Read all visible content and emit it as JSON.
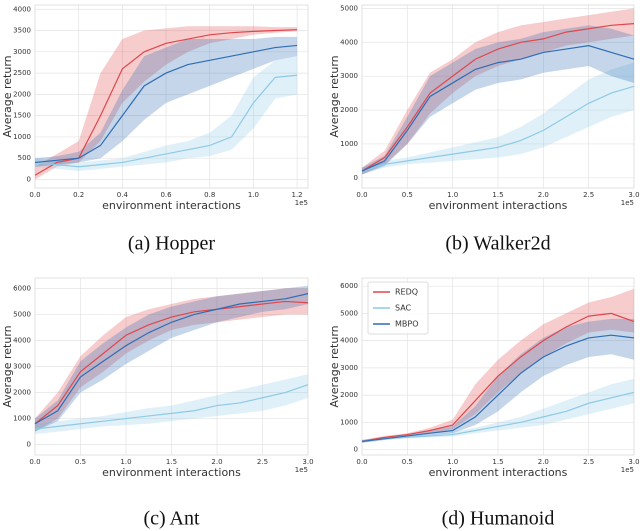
{
  "chart_data": [
    {
      "type": "line",
      "caption": "(a) Hopper",
      "ylabel": "Average return",
      "xlabel": "environment interactions",
      "x_offset_label": "1e5",
      "xlim": [
        0,
        125000
      ],
      "ylim": [
        -200,
        4100
      ],
      "xticks": [
        {
          "value": 0,
          "label": "0.0"
        },
        {
          "value": 20000,
          "label": "0.2"
        },
        {
          "value": 40000,
          "label": "0.4"
        },
        {
          "value": 60000,
          "label": "0.6"
        },
        {
          "value": 80000,
          "label": "0.8"
        },
        {
          "value": 100000,
          "label": "1.0"
        },
        {
          "value": 120000,
          "label": "1.2"
        }
      ],
      "yticks": [
        0,
        500,
        1000,
        1500,
        2000,
        2500,
        3000,
        3500,
        4000
      ],
      "grid": true,
      "x": [
        0,
        10000,
        20000,
        30000,
        40000,
        50000,
        60000,
        70000,
        80000,
        90000,
        100000,
        110000,
        120000
      ],
      "series": [
        {
          "color": "#e0474c",
          "values": [
            100,
            400,
            500,
            1500,
            2600,
            3000,
            3200,
            3300,
            3400,
            3450,
            3480,
            3500,
            3520
          ],
          "lower": [
            0,
            300,
            400,
            900,
            1800,
            2300,
            2700,
            3000,
            3200,
            3300,
            3400,
            3450,
            3480
          ],
          "upper": [
            300,
            600,
            900,
            2500,
            3300,
            3500,
            3550,
            3600,
            3600,
            3600,
            3600,
            3580,
            3580
          ]
        },
        {
          "color": "#8ecae6",
          "values": [
            400,
            350,
            300,
            350,
            400,
            500,
            600,
            700,
            800,
            1000,
            1800,
            2400,
            2450
          ],
          "lower": [
            300,
            250,
            200,
            250,
            300,
            350,
            400,
            500,
            550,
            700,
            1200,
            1900,
            2000
          ],
          "upper": [
            500,
            450,
            400,
            450,
            500,
            650,
            800,
            900,
            1100,
            1500,
            2400,
            2800,
            2900
          ]
        },
        {
          "color": "#2f6db3",
          "values": [
            400,
            450,
            500,
            800,
            1500,
            2200,
            2500,
            2700,
            2800,
            2900,
            3000,
            3100,
            3150
          ],
          "lower": [
            300,
            350,
            400,
            500,
            900,
            1400,
            1800,
            2000,
            2200,
            2400,
            2600,
            2800,
            2900
          ],
          "upper": [
            500,
            550,
            650,
            1100,
            2100,
            2900,
            3100,
            3300,
            3300,
            3300,
            3300,
            3350,
            3350
          ]
        }
      ]
    },
    {
      "type": "line",
      "caption": "(b) Walker2d",
      "ylabel": "Average return",
      "xlabel": "environment interactions",
      "x_offset_label": "1e5",
      "xlim": [
        0,
        300000
      ],
      "ylim": [
        -300,
        5100
      ],
      "xticks": [
        {
          "value": 0,
          "label": "0.0"
        },
        {
          "value": 50000,
          "label": "0.5"
        },
        {
          "value": 100000,
          "label": "1.0"
        },
        {
          "value": 150000,
          "label": "1.5"
        },
        {
          "value": 200000,
          "label": "2.0"
        },
        {
          "value": 250000,
          "label": "2.5"
        },
        {
          "value": 300000,
          "label": "3.0"
        }
      ],
      "yticks": [
        0,
        1000,
        2000,
        3000,
        4000,
        5000
      ],
      "grid": true,
      "x": [
        0,
        25000,
        50000,
        75000,
        100000,
        125000,
        150000,
        175000,
        200000,
        225000,
        250000,
        275000,
        300000
      ],
      "series": [
        {
          "color": "#e0474c",
          "values": [
            200,
            600,
            1500,
            2500,
            3000,
            3500,
            3800,
            4000,
            4100,
            4300,
            4400,
            4500,
            4550
          ],
          "lower": [
            100,
            400,
            1000,
            1900,
            2500,
            3000,
            3300,
            3500,
            3700,
            3900,
            4000,
            4100,
            4200
          ],
          "upper": [
            300,
            800,
            2000,
            3100,
            3500,
            4000,
            4300,
            4500,
            4600,
            4700,
            4800,
            4900,
            5000
          ]
        },
        {
          "color": "#8ecae6",
          "values": [
            200,
            400,
            500,
            600,
            700,
            800,
            900,
            1100,
            1400,
            1800,
            2200,
            2500,
            2700
          ],
          "lower": [
            100,
            300,
            400,
            450,
            500,
            550,
            600,
            700,
            900,
            1200,
            1500,
            1800,
            2000
          ],
          "upper": [
            300,
            500,
            600,
            750,
            900,
            1050,
            1200,
            1500,
            1900,
            2400,
            2900,
            3200,
            3400
          ]
        },
        {
          "color": "#2f6db3",
          "values": [
            200,
            500,
            1400,
            2400,
            2800,
            3200,
            3400,
            3500,
            3700,
            3800,
            3900,
            3700,
            3500
          ],
          "lower": [
            100,
            350,
            1000,
            1800,
            2200,
            2600,
            2800,
            2900,
            3100,
            3200,
            3300,
            3000,
            2800
          ],
          "upper": [
            300,
            650,
            1800,
            3000,
            3400,
            3800,
            4000,
            4100,
            4300,
            4400,
            4500,
            4400,
            4200
          ]
        }
      ]
    },
    {
      "type": "line",
      "caption": "(c) Ant",
      "ylabel": "Average return",
      "xlabel": "environment interactions",
      "x_offset_label": "1e5",
      "xlim": [
        0,
        300000
      ],
      "ylim": [
        -400,
        6400
      ],
      "xticks": [
        {
          "value": 0,
          "label": "0.0"
        },
        {
          "value": 50000,
          "label": "0.5"
        },
        {
          "value": 100000,
          "label": "1.0"
        },
        {
          "value": 150000,
          "label": "1.5"
        },
        {
          "value": 200000,
          "label": "2.0"
        },
        {
          "value": 250000,
          "label": "2.5"
        },
        {
          "value": 300000,
          "label": "3.0"
        }
      ],
      "yticks": [
        0,
        1000,
        2000,
        3000,
        4000,
        5000,
        6000
      ],
      "grid": true,
      "x": [
        0,
        25000,
        50000,
        75000,
        100000,
        125000,
        150000,
        175000,
        200000,
        225000,
        250000,
        275000,
        300000
      ],
      "series": [
        {
          "color": "#e0474c",
          "values": [
            800,
            1500,
            2800,
            3500,
            4200,
            4600,
            4900,
            5100,
            5200,
            5300,
            5400,
            5500,
            5450
          ],
          "lower": [
            500,
            1000,
            2200,
            2800,
            3500,
            4000,
            4400,
            4600,
            4700,
            4800,
            4900,
            5000,
            5000
          ],
          "upper": [
            1000,
            2000,
            3400,
            4200,
            4900,
            5200,
            5400,
            5600,
            5700,
            5800,
            5900,
            6000,
            6000
          ]
        },
        {
          "color": "#8ecae6",
          "values": [
            600,
            700,
            800,
            900,
            1000,
            1100,
            1200,
            1300,
            1500,
            1600,
            1800,
            2000,
            2300
          ],
          "lower": [
            400,
            500,
            600,
            700,
            750,
            800,
            900,
            1000,
            1100,
            1200,
            1300,
            1500,
            1800
          ],
          "upper": [
            800,
            900,
            1000,
            1100,
            1250,
            1400,
            1500,
            1700,
            1900,
            2100,
            2300,
            2500,
            2700
          ]
        },
        {
          "color": "#2f6db3",
          "values": [
            800,
            1300,
            2600,
            3200,
            3800,
            4300,
            4700,
            5000,
            5200,
            5400,
            5500,
            5600,
            5800
          ],
          "lower": [
            500,
            900,
            2000,
            2500,
            3100,
            3600,
            4100,
            4400,
            4700,
            4900,
            5100,
            5200,
            5400
          ],
          "upper": [
            1000,
            1700,
            3200,
            3900,
            4500,
            5000,
            5300,
            5500,
            5700,
            5800,
            5900,
            6000,
            6100
          ]
        }
      ]
    },
    {
      "type": "line",
      "caption": "(d) Humanoid",
      "ylabel": "Average return",
      "xlabel": "environment interactions",
      "x_offset_label": "1e5",
      "xlim": [
        0,
        300000
      ],
      "ylim": [
        -200,
        6300
      ],
      "legend": "upper left",
      "xticks": [
        {
          "value": 0,
          "label": "0.0"
        },
        {
          "value": 50000,
          "label": "0.5"
        },
        {
          "value": 100000,
          "label": "1.0"
        },
        {
          "value": 150000,
          "label": "1.5"
        },
        {
          "value": 200000,
          "label": "2.0"
        },
        {
          "value": 250000,
          "label": "2.5"
        },
        {
          "value": 300000,
          "label": "3.0"
        }
      ],
      "yticks": [
        0,
        1000,
        2000,
        3000,
        4000,
        5000,
        6000
      ],
      "grid": true,
      "x": [
        0,
        25000,
        50000,
        75000,
        100000,
        125000,
        150000,
        175000,
        200000,
        225000,
        250000,
        275000,
        300000
      ],
      "series": [
        {
          "name": "REDQ",
          "color": "#e0474c",
          "values": [
            300,
            450,
            550,
            700,
            900,
            1800,
            2700,
            3400,
            4000,
            4500,
            4900,
            5000,
            4700
          ],
          "lower": [
            250,
            400,
            500,
            600,
            750,
            1300,
            2100,
            2800,
            3400,
            3900,
            4300,
            4400,
            4300
          ],
          "upper": [
            350,
            500,
            600,
            800,
            1100,
            2400,
            3300,
            4000,
            4600,
            5000,
            5400,
            5600,
            5900
          ]
        },
        {
          "name": "SAC",
          "color": "#8ecae6",
          "values": [
            300,
            400,
            450,
            500,
            550,
            700,
            850,
            1000,
            1200,
            1400,
            1700,
            1900,
            2100
          ],
          "lower": [
            250,
            350,
            400,
            450,
            480,
            600,
            700,
            800,
            900,
            1100,
            1300,
            1500,
            1700
          ],
          "upper": [
            350,
            450,
            500,
            550,
            650,
            800,
            1000,
            1200,
            1500,
            1800,
            2100,
            2400,
            2600
          ]
        },
        {
          "name": "MBPO",
          "color": "#2f6db3",
          "values": [
            300,
            400,
            500,
            600,
            700,
            1200,
            2000,
            2800,
            3400,
            3800,
            4100,
            4200,
            4100
          ],
          "lower": [
            250,
            350,
            450,
            520,
            600,
            900,
            1400,
            2100,
            2700,
            3100,
            3400,
            3500,
            3300
          ],
          "upper": [
            350,
            450,
            550,
            700,
            850,
            1600,
            2700,
            3500,
            4100,
            4500,
            4700,
            4800,
            4800
          ]
        }
      ]
    }
  ]
}
